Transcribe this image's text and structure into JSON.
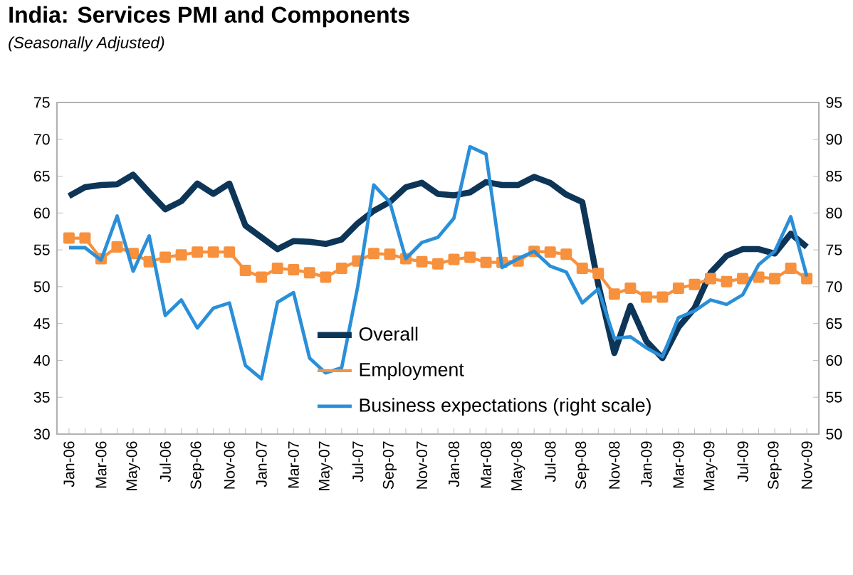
{
  "chart_data": {
    "type": "line",
    "title": "India: Services PMI and Components",
    "subtitle": "(Seasonally Adjusted)",
    "categories": [
      "Jan-06",
      null,
      "Mar-06",
      null,
      "May-06",
      null,
      "Jul-06",
      null,
      "Sep-06",
      null,
      "Nov-06",
      null,
      "Jan-07",
      null,
      "Mar-07",
      null,
      "May-07",
      null,
      "Jul-07",
      null,
      "Sep-07",
      null,
      "Nov-07",
      null,
      "Jan-08",
      null,
      "Mar-08",
      null,
      "May-08",
      null,
      "Jul-08",
      null,
      "Sep-08",
      null,
      "Nov-08",
      null,
      "Jan-09",
      null,
      "Mar-09",
      null,
      "May-09",
      null,
      "Jul-09",
      null,
      "Sep-09",
      null,
      "Nov-09"
    ],
    "series": [
      {
        "name": "Overall",
        "color": "#0d3558",
        "marker": "none",
        "values": [
          62.3,
          63.5,
          63.8,
          63.9,
          65.2,
          62.8,
          60.5,
          61.6,
          64,
          62.6,
          64,
          58.3,
          56.7,
          55.1,
          56.2,
          56.1,
          55.8,
          56.4,
          58.6,
          60.3,
          61.5,
          63.5,
          64.1,
          62.6,
          62.4,
          62.8,
          64.2,
          63.8,
          63.8,
          64.9,
          64.1,
          62.5,
          61.5,
          50.3,
          41,
          47.4,
          42.6,
          40.3,
          44.5,
          47.1,
          51.9,
          54.2,
          55.1,
          55.1,
          54.5,
          57.2,
          55.4
        ]
      },
      {
        "name": "Employment",
        "color": "#f7913d",
        "marker": "square",
        "values": [
          56.6,
          56.6,
          53.8,
          55.4,
          54.5,
          53.4,
          54,
          54.3,
          54.7,
          54.7,
          54.7,
          52.2,
          51.3,
          52.5,
          52.3,
          51.9,
          51.3,
          52.5,
          53.5,
          54.5,
          54.4,
          53.8,
          53.4,
          53.1,
          53.7,
          54,
          53.3,
          53.3,
          53.5,
          54.8,
          54.7,
          54.4,
          52.5,
          51.8,
          49,
          49.8,
          48.6,
          48.6,
          49.8,
          50.3,
          51.1,
          50.7,
          51.1,
          51.3,
          51.1,
          52.5,
          51.1
        ]
      },
      {
        "name": "Business expectations (right scale)",
        "color": "#2a8fd8",
        "marker": "none",
        "axis": "y2",
        "values": [
          75.3,
          75.3,
          73.6,
          79.6,
          72.1,
          76.9,
          66.1,
          68.2,
          64.4,
          67.1,
          67.8,
          59.3,
          57.5,
          67.9,
          69.2,
          60.3,
          58.3,
          59,
          70,
          83.8,
          81.5,
          73.8,
          76,
          76.7,
          79.3,
          89,
          88,
          72.6,
          73.8,
          74.8,
          72.8,
          72,
          67.8,
          69.7,
          63,
          63.2,
          61.7,
          60.5,
          65.8,
          66.7,
          68.2,
          67.6,
          68.9,
          73,
          74.8,
          79.5,
          71.4
        ]
      }
    ],
    "ylim": [
      30,
      75
    ],
    "yticks": [
      30,
      35,
      40,
      45,
      50,
      55,
      60,
      65,
      70,
      75
    ],
    "y2lim": [
      50,
      95
    ],
    "y2ticks": [
      50,
      55,
      60,
      65,
      70,
      75,
      80,
      85,
      90,
      95
    ],
    "grid": false,
    "legend": "bottom right",
    "line_style": "solid"
  }
}
